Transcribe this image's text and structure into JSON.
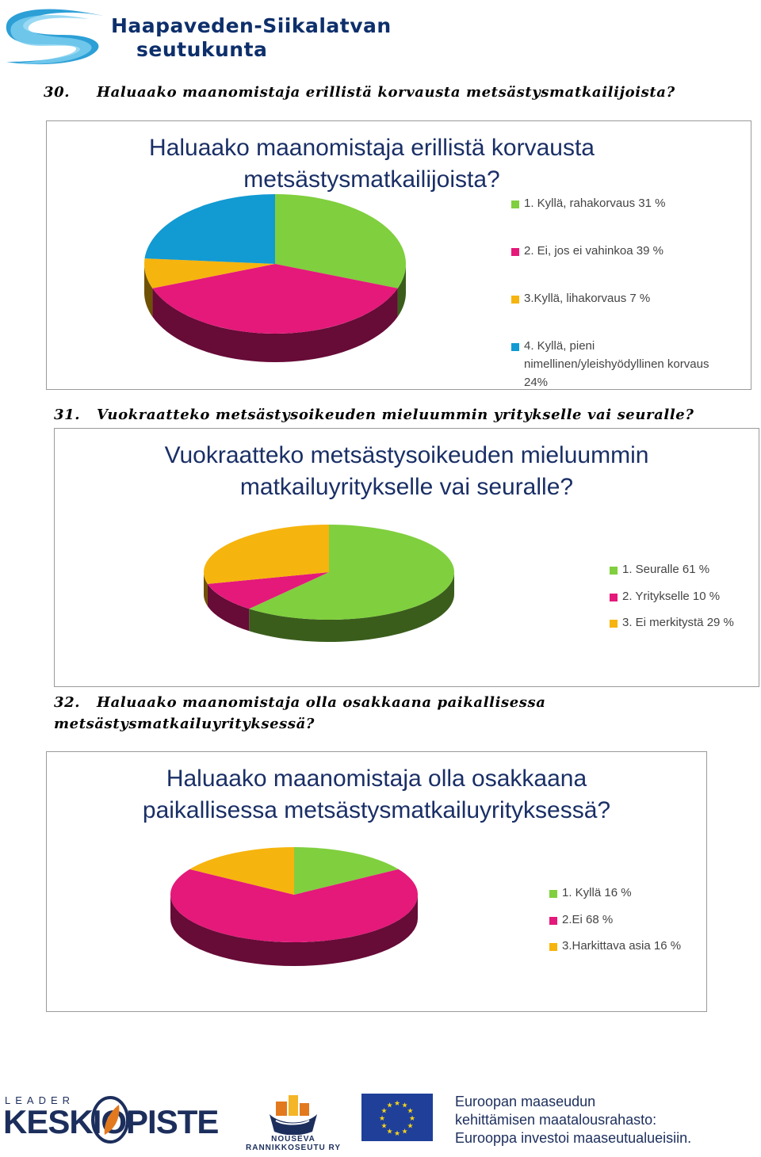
{
  "header": {
    "brand_line1": "Haapaveden-Siikalatvan",
    "brand_line2": "seutukunta"
  },
  "sections": [
    {
      "number": "30.",
      "question": "Haluaako maanomistaja erillistä korvausta metsästysmatkailijoista?"
    },
    {
      "number": "31.",
      "question": "Vuokraatteko metsästysoikeuden mieluummin yritykselle vai seuralle?"
    },
    {
      "number": "32.",
      "question_line1": "Haluaako maanomistaja olla osakkaana paikallisessa",
      "question_line2": "metsästysmatkailuyrityksessä?"
    }
  ],
  "chart_data": [
    {
      "type": "pie",
      "title_line1": "Haluaako maanomistaja erillistä korvausta",
      "title_line2": "metsästysmatkailijoista?",
      "categories": [
        "1. Kyllä, rahakorvaus 31 %",
        "2. Ei, jos ei vahinkoa 39 %",
        "3.Kyllä, lihakorvaus 7 %",
        "4. Kyllä, pieni nimellinen/yleishyödyllinen korvaus 24%"
      ],
      "legend_lines": [
        [
          "1. Kyllä, rahakorvaus 31 %"
        ],
        [
          "2. Ei, jos ei vahinkoa 39 %"
        ],
        [
          "3.Kyllä, lihakorvaus 7 %"
        ],
        [
          "4. Kyllä, pieni",
          "nimellinen/yleishyödyllinen korvaus",
          "24%"
        ]
      ],
      "values": [
        31,
        39,
        7,
        24
      ],
      "colors": [
        "#80cf3e",
        "#e4197a",
        "#f6b40e",
        "#129ad2"
      ],
      "legend_placement": "right"
    },
    {
      "type": "pie",
      "title_line1": "Vuokraatteko metsästysoikeuden mieluummin",
      "title_line2": "matkailuyritykselle vai seuralle?",
      "categories": [
        "1. Seuralle 61 %",
        "2. Yritykselle 10 %",
        "3. Ei merkitystä 29 %"
      ],
      "legend_lines": [
        [
          "1. Seuralle 61 %"
        ],
        [
          "2. Yritykselle 10 %"
        ],
        [
          "3. Ei merkitystä 29 %"
        ]
      ],
      "values": [
        61,
        10,
        29
      ],
      "colors": [
        "#80cf3e",
        "#e4197a",
        "#f6b40e"
      ],
      "legend_placement": "right"
    },
    {
      "type": "pie",
      "title_line1": "Haluaako maanomistaja olla osakkaana",
      "title_line2": "paikallisessa metsästysmatkailuyrityksessä?",
      "categories": [
        "1. Kyllä 16 %",
        "2.Ei 68 %",
        "3.Harkittava asia 16 %"
      ],
      "legend_lines": [
        [
          "1. Kyllä 16 %"
        ],
        [
          "2.Ei 68 %"
        ],
        [
          "3.Harkittava asia 16 %"
        ]
      ],
      "values": [
        16,
        68,
        16
      ],
      "colors": [
        "#80cf3e",
        "#e4197a",
        "#f6b40e"
      ],
      "legend_placement": "right"
    }
  ],
  "footer": {
    "leader_small": "LEADER",
    "leader_big": "KESKIOPISTE",
    "nouseva_line1": "NOUSEVA",
    "nouseva_line2": "RANNIKKOSEUTU RY",
    "eu_line1": "Euroopan maaseudun",
    "eu_line2": "kehittämisen maatalousrahasto:",
    "eu_line3": "Eurooppa investoi maaseutualueisiin.",
    "eu_flag_color": "#1f3f99",
    "eu_star_color": "#f7d417"
  }
}
